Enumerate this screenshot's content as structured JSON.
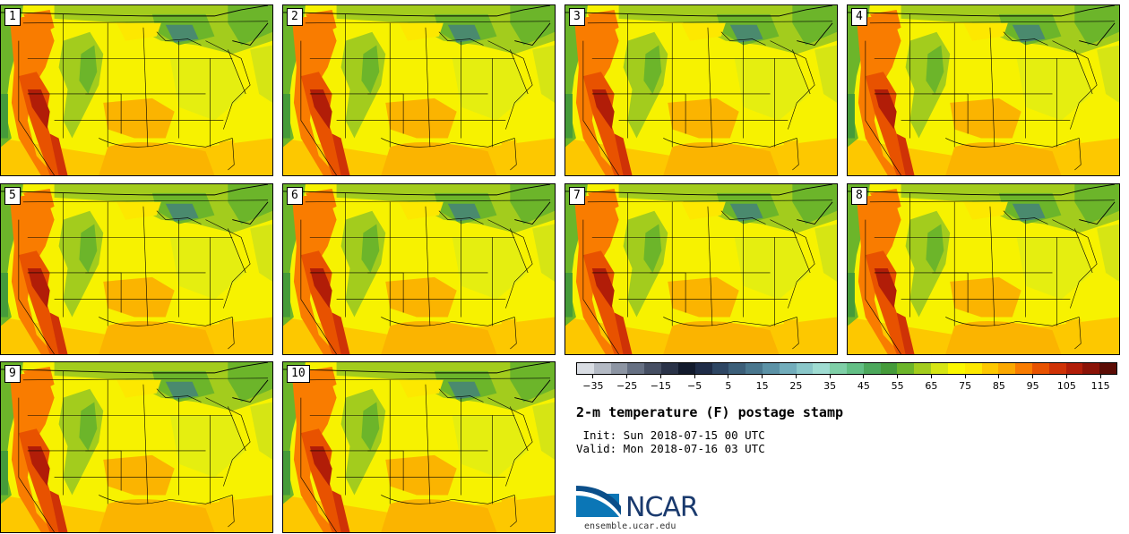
{
  "panels": [
    {
      "label": "1"
    },
    {
      "label": "2"
    },
    {
      "label": "3"
    },
    {
      "label": "4"
    },
    {
      "label": "5"
    },
    {
      "label": "6"
    },
    {
      "label": "7"
    },
    {
      "label": "8"
    },
    {
      "label": "9"
    },
    {
      "label": "10"
    }
  ],
  "colorbar": {
    "colors": [
      "#d9dde3",
      "#b4bac4",
      "#8d95a3",
      "#667083",
      "#464f63",
      "#2a3348",
      "#121a2c",
      "#1f2c47",
      "#2e4663",
      "#3c5f79",
      "#4a778e",
      "#5c92a6",
      "#72adbb",
      "#8ac7c9",
      "#9fdcd2",
      "#7fcfa7",
      "#63bf85",
      "#4ca85c",
      "#459b3a",
      "#6cb52a",
      "#a3cc1d",
      "#d6e514",
      "#fbf700",
      "#fde800",
      "#fdc800",
      "#fba800",
      "#f97c00",
      "#e85200",
      "#cf3206",
      "#b11d08",
      "#8a1307",
      "#5c0c05"
    ],
    "ticks": [
      "−35",
      "−25",
      "−15",
      "−5",
      "5",
      "15",
      "25",
      "35",
      "45",
      "55",
      "65",
      "75",
      "85",
      "95",
      "105",
      "115"
    ]
  },
  "title": "2-m temperature (F) postage stamp",
  "init": " Init: Sun 2018-07-15 00 UTC",
  "valid": "Valid: Mon 2018-07-16 03 UTC",
  "logo": {
    "word": "NCAR",
    "url": "ensemble.ucar.edu"
  }
}
